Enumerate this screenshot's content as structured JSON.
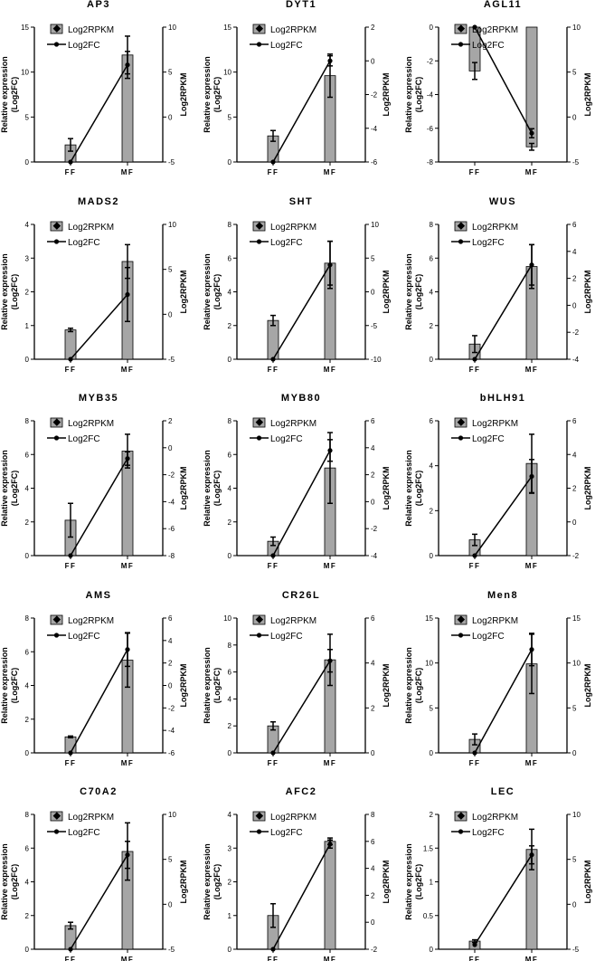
{
  "chart_data": [
    {
      "type": "bar",
      "title": "AP3",
      "categories": [
        "FF",
        "MF"
      ],
      "left_axis": {
        "label": "Relative expression (Log2FC)",
        "lim": [
          0,
          15
        ],
        "ticks": [
          0,
          5,
          10,
          15
        ]
      },
      "right_axis": {
        "label": "Log2RPKM",
        "lim": [
          -5,
          10
        ],
        "ticks": [
          -5,
          0,
          5,
          10
        ]
      },
      "series": [
        {
          "name": "Log2RPKM",
          "type": "bar",
          "axis": "left",
          "values": [
            1.9,
            11.9
          ],
          "err": [
            0.7,
            2.1
          ]
        },
        {
          "name": "Log2FC",
          "type": "line",
          "axis": "right",
          "values": [
            -5,
            5.8
          ],
          "err": [
            0,
            1.5
          ]
        }
      ]
    },
    {
      "type": "bar",
      "title": "DYT1",
      "categories": [
        "FF",
        "MF"
      ],
      "left_axis": {
        "label": "Relative expression (Log2FC)",
        "lim": [
          0,
          15
        ],
        "ticks": [
          0,
          5,
          10,
          15
        ]
      },
      "right_axis": {
        "label": "Log2RPKM",
        "lim": [
          -6,
          2
        ],
        "ticks": [
          -6,
          -4,
          -2,
          0,
          2
        ]
      },
      "series": [
        {
          "name": "Log2RPKM",
          "type": "bar",
          "axis": "left",
          "values": [
            2.9,
            9.6
          ],
          "err": [
            0.6,
            2.4
          ]
        },
        {
          "name": "Log2FC",
          "type": "line",
          "axis": "right",
          "values": [
            -6,
            0
          ],
          "err": [
            0,
            0.3
          ]
        }
      ]
    },
    {
      "type": "bar",
      "title": "AGL11",
      "categories": [
        "FF",
        "MF"
      ],
      "left_axis": {
        "label": "Relative expression (Log2FC)",
        "lim": [
          -8,
          0
        ],
        "ticks": [
          -8,
          -6,
          -4,
          -2,
          0
        ]
      },
      "right_axis": {
        "label": "Log2RPKM",
        "lim": [
          -5,
          10
        ],
        "ticks": [
          -5,
          0,
          5,
          10
        ]
      },
      "series": [
        {
          "name": "Log2RPKM",
          "type": "bar",
          "axis": "left",
          "values": [
            -2.6,
            -7.1
          ],
          "err": [
            0.5,
            0.2
          ]
        },
        {
          "name": "Log2FC",
          "type": "line",
          "axis": "right",
          "values": [
            10,
            -1.8
          ],
          "err": [
            0,
            0.5
          ]
        }
      ]
    },
    {
      "type": "bar",
      "title": "MADS2",
      "categories": [
        "FF",
        "MF"
      ],
      "left_axis": {
        "label": "Relative expression (Log2FC)",
        "lim": [
          0,
          4
        ],
        "ticks": [
          0,
          1,
          2,
          3,
          4
        ]
      },
      "right_axis": {
        "label": "Log2RPKM",
        "lim": [
          -5,
          10
        ],
        "ticks": [
          -5,
          0,
          5,
          10
        ]
      },
      "series": [
        {
          "name": "Log2RPKM",
          "type": "bar",
          "axis": "left",
          "values": [
            0.87,
            2.9
          ],
          "err": [
            0.05,
            0.5
          ]
        },
        {
          "name": "Log2FC",
          "type": "line",
          "axis": "right",
          "values": [
            -5,
            2.2
          ],
          "err": [
            0,
            3
          ]
        }
      ]
    },
    {
      "type": "bar",
      "title": "SHT",
      "categories": [
        "FF",
        "MF"
      ],
      "left_axis": {
        "label": "Relative expression (Log2FC)",
        "lim": [
          0,
          8
        ],
        "ticks": [
          0,
          2,
          4,
          6,
          8
        ]
      },
      "right_axis": {
        "label": "Log2RPKM",
        "lim": [
          -10,
          10
        ],
        "ticks": [
          -10,
          -5,
          0,
          5,
          10
        ]
      },
      "series": [
        {
          "name": "Log2RPKM",
          "type": "bar",
          "axis": "left",
          "values": [
            2.3,
            5.7
          ],
          "err": [
            0.3,
            1.3
          ]
        },
        {
          "name": "Log2FC",
          "type": "line",
          "axis": "right",
          "values": [
            -10,
            4
          ],
          "err": [
            0,
            3.5
          ]
        }
      ]
    },
    {
      "type": "bar",
      "title": "WUS",
      "categories": [
        "FF",
        "MF"
      ],
      "left_axis": {
        "label": "Relative expression (Log2FC)",
        "lim": [
          0,
          8
        ],
        "ticks": [
          0,
          2,
          4,
          6,
          8
        ]
      },
      "right_axis": {
        "label": "Log2RPKM",
        "lim": [
          -4,
          6
        ],
        "ticks": [
          -4,
          -2,
          0,
          2,
          4,
          6
        ]
      },
      "series": [
        {
          "name": "Log2RPKM",
          "type": "bar",
          "axis": "left",
          "values": [
            0.9,
            5.5
          ],
          "err": [
            0.5,
            1.3
          ]
        },
        {
          "name": "Log2FC",
          "type": "line",
          "axis": "right",
          "values": [
            -4,
            3
          ],
          "err": [
            0,
            1.5
          ]
        }
      ]
    },
    {
      "type": "bar",
      "title": "MYB35",
      "categories": [
        "FF",
        "MF"
      ],
      "left_axis": {
        "label": "Relative expression (Log2FC)",
        "lim": [
          0,
          8
        ],
        "ticks": [
          0,
          2,
          4,
          6,
          8
        ]
      },
      "right_axis": {
        "label": "Log2RPKM",
        "lim": [
          -8,
          2
        ],
        "ticks": [
          -8,
          -6,
          -4,
          -2,
          0,
          2
        ]
      },
      "series": [
        {
          "name": "Log2RPKM",
          "type": "bar",
          "axis": "left",
          "values": [
            2.1,
            6.2
          ],
          "err": [
            1,
            1
          ]
        },
        {
          "name": "Log2FC",
          "type": "line",
          "axis": "right",
          "values": [
            -8,
            -0.8
          ],
          "err": [
            0,
            0.5
          ]
        }
      ]
    },
    {
      "type": "bar",
      "title": "MYB80",
      "categories": [
        "FF",
        "MF"
      ],
      "left_axis": {
        "label": "Relative expression (Log2FC)",
        "lim": [
          0,
          8
        ],
        "ticks": [
          0,
          2,
          4,
          6,
          8
        ]
      },
      "right_axis": {
        "label": "Log2RPKM",
        "lim": [
          -4,
          6
        ],
        "ticks": [
          -4,
          -2,
          0,
          2,
          4,
          6
        ]
      },
      "series": [
        {
          "name": "Log2RPKM",
          "type": "bar",
          "axis": "left",
          "values": [
            0.85,
            5.2
          ],
          "err": [
            0.25,
            2.1
          ]
        },
        {
          "name": "Log2FC",
          "type": "line",
          "axis": "right",
          "values": [
            -4,
            3.8
          ],
          "err": [
            0,
            0.8
          ]
        }
      ]
    },
    {
      "type": "bar",
      "title": "bHLH91",
      "categories": [
        "FF",
        "MF"
      ],
      "left_axis": {
        "label": "Relative expression (Log2FC)",
        "lim": [
          0,
          6
        ],
        "ticks": [
          0,
          2,
          4,
          6
        ]
      },
      "right_axis": {
        "label": "Log2RPKM",
        "lim": [
          -2,
          6
        ],
        "ticks": [
          -2,
          0,
          2,
          4,
          6
        ]
      },
      "series": [
        {
          "name": "Log2RPKM",
          "type": "bar",
          "axis": "left",
          "values": [
            0.7,
            4.1
          ],
          "err": [
            0.25,
            1.3
          ]
        },
        {
          "name": "Log2FC",
          "type": "line",
          "axis": "right",
          "values": [
            -2,
            2.7
          ],
          "err": [
            0,
            1
          ]
        }
      ]
    },
    {
      "type": "bar",
      "title": "AMS",
      "categories": [
        "FF",
        "MF"
      ],
      "left_axis": {
        "label": "Relative expression (Log2FC)",
        "lim": [
          0,
          8
        ],
        "ticks": [
          0,
          2,
          4,
          6,
          8
        ]
      },
      "right_axis": {
        "label": "Log2RPKM",
        "lim": [
          -6,
          6
        ],
        "ticks": [
          -6,
          -4,
          -2,
          0,
          2,
          4,
          6
        ]
      },
      "series": [
        {
          "name": "Log2RPKM",
          "type": "bar",
          "axis": "left",
          "values": [
            0.95,
            5.5
          ],
          "err": [
            0.05,
            1.6
          ]
        },
        {
          "name": "Log2FC",
          "type": "line",
          "axis": "right",
          "values": [
            -6,
            3.2
          ],
          "err": [
            0,
            1.5
          ]
        }
      ]
    },
    {
      "type": "bar",
      "title": "CR26L",
      "categories": [
        "FF",
        "MF"
      ],
      "left_axis": {
        "label": "Relative expression (Log2FC)",
        "lim": [
          0,
          10
        ],
        "ticks": [
          0,
          2,
          4,
          6,
          8,
          10
        ]
      },
      "right_axis": {
        "label": "Log2RPKM",
        "lim": [
          0,
          6
        ],
        "ticks": [
          0,
          2,
          4,
          6
        ]
      },
      "series": [
        {
          "name": "Log2RPKM",
          "type": "bar",
          "axis": "left",
          "values": [
            2,
            6.9
          ],
          "err": [
            0.3,
            1.9
          ]
        },
        {
          "name": "Log2FC",
          "type": "line",
          "axis": "right",
          "values": [
            0,
            4.1
          ],
          "err": [
            0,
            0.5
          ]
        }
      ]
    },
    {
      "type": "bar",
      "title": "Men8",
      "categories": [
        "FF",
        "MF"
      ],
      "left_axis": {
        "label": "Relative expression (Log2FC)",
        "lim": [
          0,
          15
        ],
        "ticks": [
          0,
          5,
          10,
          15
        ]
      },
      "right_axis": {
        "label": "Log2RPKM",
        "lim": [
          0,
          15
        ],
        "ticks": [
          0,
          5,
          10,
          15
        ]
      },
      "series": [
        {
          "name": "Log2RPKM",
          "type": "bar",
          "axis": "left",
          "values": [
            1.5,
            9.9
          ],
          "err": [
            0.6,
            3.3
          ]
        },
        {
          "name": "Log2FC",
          "type": "line",
          "axis": "right",
          "values": [
            0,
            11.5
          ],
          "err": [
            0,
            1.8
          ]
        }
      ]
    },
    {
      "type": "bar",
      "title": "C70A2",
      "categories": [
        "FF",
        "MF"
      ],
      "left_axis": {
        "label": "Relative expression (Log2FC)",
        "lim": [
          0,
          8
        ],
        "ticks": [
          0,
          2,
          4,
          6,
          8
        ]
      },
      "right_axis": {
        "label": "Log2RPKM",
        "lim": [
          -5,
          10
        ],
        "ticks": [
          -5,
          0,
          5,
          10
        ]
      },
      "series": [
        {
          "name": "Log2RPKM",
          "type": "bar",
          "axis": "left",
          "values": [
            1.4,
            5.8
          ],
          "err": [
            0.2,
            1.7
          ]
        },
        {
          "name": "Log2FC",
          "type": "line",
          "axis": "right",
          "values": [
            -5,
            5.5
          ],
          "err": [
            0,
            1.5
          ]
        }
      ]
    },
    {
      "type": "bar",
      "title": "AFC2",
      "categories": [
        "FF",
        "MF"
      ],
      "left_axis": {
        "label": "Relative expression (Log2FC)",
        "lim": [
          0,
          4
        ],
        "ticks": [
          0,
          1,
          2,
          3,
          4
        ]
      },
      "right_axis": {
        "label": "Log2RPKM",
        "lim": [
          -2,
          8
        ],
        "ticks": [
          -2,
          0,
          2,
          4,
          6,
          8
        ]
      },
      "series": [
        {
          "name": "Log2RPKM",
          "type": "bar",
          "axis": "left",
          "values": [
            1,
            3.2
          ],
          "err": [
            0.35,
            0.1
          ]
        },
        {
          "name": "Log2FC",
          "type": "line",
          "axis": "right",
          "values": [
            -2,
            5.8
          ],
          "err": [
            0,
            0.3
          ]
        }
      ]
    },
    {
      "type": "bar",
      "title": "LEC",
      "categories": [
        "FF",
        "MF"
      ],
      "left_axis": {
        "label": "Relative expression (Log2FC)",
        "lim": [
          0,
          2
        ],
        "ticks": [
          0,
          0.5,
          1.0,
          1.5,
          2.0
        ]
      },
      "right_axis": {
        "label": "Log2RPKM",
        "lim": [
          -5,
          10
        ],
        "ticks": [
          -5,
          0,
          5,
          10
        ]
      },
      "series": [
        {
          "name": "Log2RPKM",
          "type": "bar",
          "axis": "left",
          "values": [
            0.12,
            1.48
          ],
          "err": [
            0.02,
            0.3
          ]
        },
        {
          "name": "Log2FC",
          "type": "line",
          "axis": "right",
          "values": [
            -4.5,
            5.5
          ],
          "err": [
            0,
            1
          ]
        }
      ]
    }
  ]
}
